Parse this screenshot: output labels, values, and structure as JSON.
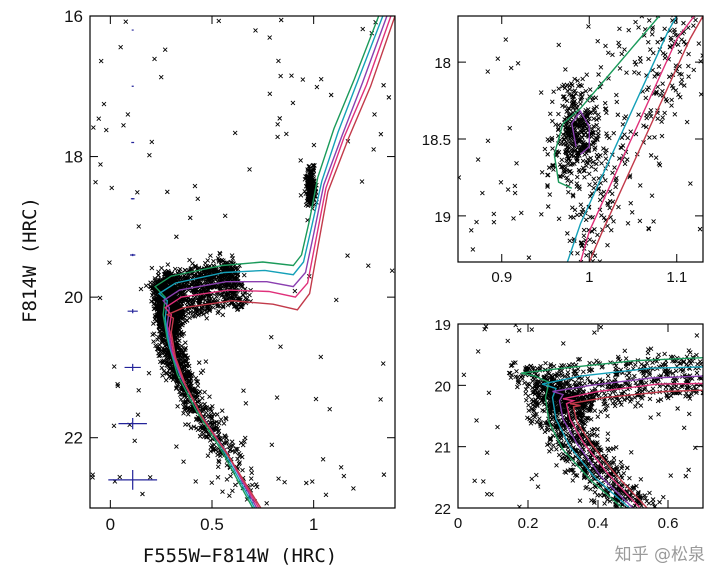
{
  "colors": {
    "stars": "#000000",
    "error_bars": "#23239a",
    "isochrones": [
      "#1a9a5a",
      "#14a0b8",
      "#8a3fb0",
      "#e0307a",
      "#c23a4a"
    ]
  },
  "watermark": "知乎 @松泉",
  "chart_data": [
    {
      "id": "main-cmd",
      "type": "scatter",
      "xlabel": "F555W−F814W (HRC)",
      "ylabel": "F814W (HRC)",
      "xlim": [
        -0.1,
        1.4
      ],
      "ylim": [
        23,
        16
      ],
      "y_inverted": true,
      "xticks": [
        {
          "v": 0,
          "label": "0"
        },
        {
          "v": 0.5,
          "label": "0.5"
        },
        {
          "v": 1,
          "label": "1"
        }
      ],
      "yticks": [
        {
          "v": 16,
          "label": "16"
        },
        {
          "v": 18,
          "label": "18"
        },
        {
          "v": 20,
          "label": "20"
        },
        {
          "v": 22,
          "label": "22"
        }
      ],
      "error_bars": [
        {
          "x": 0.11,
          "y": 16.2,
          "xerr": 0.004,
          "yerr": 0.005
        },
        {
          "x": 0.11,
          "y": 17.0,
          "xerr": 0.005,
          "yerr": 0.006
        },
        {
          "x": 0.11,
          "y": 17.8,
          "xerr": 0.007,
          "yerr": 0.008
        },
        {
          "x": 0.11,
          "y": 18.6,
          "xerr": 0.009,
          "yerr": 0.011
        },
        {
          "x": 0.11,
          "y": 19.4,
          "xerr": 0.013,
          "yerr": 0.016
        },
        {
          "x": 0.11,
          "y": 20.2,
          "xerr": 0.025,
          "yerr": 0.03
        },
        {
          "x": 0.11,
          "y": 21.0,
          "xerr": 0.04,
          "yerr": 0.05
        },
        {
          "x": 0.11,
          "y": 21.8,
          "xerr": 0.07,
          "yerr": 0.08
        },
        {
          "x": 0.11,
          "y": 22.6,
          "xerr": 0.12,
          "yerr": 0.14
        }
      ],
      "isochrones": [
        {
          "color_index": 0,
          "points": [
            [
              0.7,
              23.0
            ],
            [
              0.55,
              22.2
            ],
            [
              0.42,
              21.6
            ],
            [
              0.33,
              21.1
            ],
            [
              0.28,
              20.6
            ],
            [
              0.26,
              20.25
            ],
            [
              0.27,
              20.0
            ],
            [
              0.22,
              19.85
            ],
            [
              0.3,
              19.7
            ],
            [
              0.55,
              19.55
            ],
            [
              0.75,
              19.5
            ],
            [
              0.9,
              19.55
            ],
            [
              0.94,
              19.4
            ],
            [
              0.98,
              18.9
            ],
            [
              1.02,
              18.3
            ],
            [
              1.1,
              17.6
            ],
            [
              1.2,
              16.9
            ],
            [
              1.32,
              16.0
            ]
          ]
        },
        {
          "color_index": 1,
          "points": [
            [
              0.71,
              23.0
            ],
            [
              0.56,
              22.2
            ],
            [
              0.43,
              21.6
            ],
            [
              0.34,
              21.1
            ],
            [
              0.29,
              20.7
            ],
            [
              0.27,
              20.3
            ],
            [
              0.28,
              20.05
            ],
            [
              0.24,
              19.95
            ],
            [
              0.32,
              19.8
            ],
            [
              0.56,
              19.65
            ],
            [
              0.76,
              19.62
            ],
            [
              0.9,
              19.68
            ],
            [
              0.95,
              19.5
            ],
            [
              0.99,
              19.0
            ],
            [
              1.04,
              18.35
            ],
            [
              1.12,
              17.65
            ],
            [
              1.22,
              16.9
            ],
            [
              1.34,
              16.0
            ]
          ]
        },
        {
          "color_index": 2,
          "points": [
            [
              0.72,
              23.0
            ],
            [
              0.57,
              22.2
            ],
            [
              0.44,
              21.65
            ],
            [
              0.35,
              21.15
            ],
            [
              0.3,
              20.75
            ],
            [
              0.28,
              20.4
            ],
            [
              0.29,
              20.15
            ],
            [
              0.26,
              20.05
            ],
            [
              0.34,
              19.9
            ],
            [
              0.57,
              19.78
            ],
            [
              0.77,
              19.78
            ],
            [
              0.9,
              19.85
            ],
            [
              0.96,
              19.65
            ],
            [
              1.0,
              19.1
            ],
            [
              1.05,
              18.4
            ],
            [
              1.14,
              17.7
            ],
            [
              1.24,
              16.95
            ],
            [
              1.36,
              16.0
            ]
          ]
        },
        {
          "color_index": 3,
          "points": [
            [
              0.73,
              23.0
            ],
            [
              0.58,
              22.25
            ],
            [
              0.45,
              21.7
            ],
            [
              0.36,
              21.2
            ],
            [
              0.31,
              20.8
            ],
            [
              0.29,
              20.45
            ],
            [
              0.3,
              20.25
            ],
            [
              0.27,
              20.15
            ],
            [
              0.35,
              20.0
            ],
            [
              0.58,
              19.9
            ],
            [
              0.78,
              19.92
            ],
            [
              0.91,
              20.0
            ],
            [
              0.97,
              19.8
            ],
            [
              1.01,
              19.2
            ],
            [
              1.06,
              18.45
            ],
            [
              1.15,
              17.72
            ],
            [
              1.26,
              16.98
            ],
            [
              1.38,
              16.0
            ]
          ]
        },
        {
          "color_index": 4,
          "points": [
            [
              0.74,
              23.0
            ],
            [
              0.59,
              22.3
            ],
            [
              0.46,
              21.75
            ],
            [
              0.37,
              21.25
            ],
            [
              0.32,
              20.85
            ],
            [
              0.3,
              20.5
            ],
            [
              0.31,
              20.3
            ],
            [
              0.28,
              20.25
            ],
            [
              0.36,
              20.15
            ],
            [
              0.6,
              20.05
            ],
            [
              0.8,
              20.1
            ],
            [
              0.92,
              20.18
            ],
            [
              0.98,
              19.95
            ],
            [
              1.02,
              19.3
            ],
            [
              1.07,
              18.5
            ],
            [
              1.17,
              17.75
            ],
            [
              1.28,
              17.0
            ],
            [
              1.4,
              16.0
            ]
          ]
        }
      ]
    },
    {
      "id": "rgb-zoom",
      "type": "scatter",
      "xlabel": "",
      "ylabel": "",
      "xlim": [
        0.85,
        1.13
      ],
      "ylim": [
        19.3,
        17.7
      ],
      "y_inverted": true,
      "xticks": [
        {
          "v": 0.9,
          "label": "0.9"
        },
        {
          "v": 1.0,
          "label": "1"
        },
        {
          "v": 1.1,
          "label": "1.1"
        }
      ],
      "yticks": [
        {
          "v": 18.0,
          "label": "18"
        },
        {
          "v": 18.5,
          "label": "18.5"
        },
        {
          "v": 19.0,
          "label": "19"
        }
      ],
      "isochrones": [
        {
          "color_index": 0,
          "points": [
            [
              0.98,
              18.82
            ],
            [
              0.965,
              18.78
            ],
            [
              0.96,
              18.6
            ],
            [
              0.97,
              18.4
            ],
            [
              0.99,
              18.3
            ],
            [
              1.02,
              18.1
            ],
            [
              1.05,
              17.9
            ],
            [
              1.08,
              17.7
            ]
          ]
        },
        {
          "color_index": 1,
          "points": [
            [
              0.975,
              19.3
            ],
            [
              0.99,
              19.05
            ],
            [
              1.01,
              18.8
            ],
            [
              1.03,
              18.55
            ],
            [
              1.05,
              18.3
            ],
            [
              1.07,
              18.05
            ],
            [
              1.09,
              17.8
            ],
            [
              1.1,
              17.7
            ]
          ]
        },
        {
          "color_index": 2,
          "points": [
            [
              0.985,
              18.55
            ],
            [
              0.98,
              18.4
            ],
            [
              0.99,
              18.32
            ],
            [
              1.0,
              18.42
            ],
            [
              1.0,
              18.55
            ],
            [
              0.99,
              18.6
            ]
          ]
        },
        {
          "color_index": 3,
          "points": [
            [
              0.99,
              19.3
            ],
            [
              1.0,
              19.1
            ],
            [
              1.02,
              18.85
            ],
            [
              1.04,
              18.6
            ],
            [
              1.06,
              18.35
            ],
            [
              1.08,
              18.1
            ],
            [
              1.1,
              17.85
            ],
            [
              1.12,
              17.7
            ]
          ]
        },
        {
          "color_index": 4,
          "points": [
            [
              1.0,
              19.3
            ],
            [
              1.015,
              19.1
            ],
            [
              1.035,
              18.85
            ],
            [
              1.055,
              18.6
            ],
            [
              1.075,
              18.35
            ],
            [
              1.095,
              18.1
            ],
            [
              1.115,
              17.85
            ],
            [
              1.13,
              17.7
            ]
          ]
        }
      ]
    },
    {
      "id": "turnoff-zoom",
      "type": "scatter",
      "xlabel": "",
      "ylabel": "",
      "xlim": [
        0,
        0.7
      ],
      "ylim": [
        22,
        19
      ],
      "y_inverted": true,
      "xticks": [
        {
          "v": 0,
          "label": "0"
        },
        {
          "v": 0.2,
          "label": "0.2"
        },
        {
          "v": 0.4,
          "label": "0.4"
        },
        {
          "v": 0.6,
          "label": "0.6"
        }
      ],
      "yticks": [
        {
          "v": 19,
          "label": "19"
        },
        {
          "v": 20,
          "label": "20"
        },
        {
          "v": 21,
          "label": "21"
        },
        {
          "v": 22,
          "label": "22"
        }
      ],
      "isochrones": [
        {
          "color_index": 0,
          "points": [
            [
              0.47,
              22.0
            ],
            [
              0.38,
              21.55
            ],
            [
              0.3,
              21.05
            ],
            [
              0.26,
              20.6
            ],
            [
              0.25,
              20.2
            ],
            [
              0.26,
              19.95
            ],
            [
              0.22,
              19.85
            ],
            [
              0.18,
              19.8
            ],
            [
              0.3,
              19.72
            ],
            [
              0.5,
              19.6
            ],
            [
              0.7,
              19.55
            ]
          ]
        },
        {
          "color_index": 1,
          "points": [
            [
              0.49,
              22.0
            ],
            [
              0.39,
              21.5
            ],
            [
              0.32,
              21.0
            ],
            [
              0.28,
              20.55
            ],
            [
              0.27,
              20.2
            ],
            [
              0.28,
              20.05
            ],
            [
              0.24,
              19.98
            ],
            [
              0.35,
              19.85
            ],
            [
              0.55,
              19.72
            ],
            [
              0.7,
              19.7
            ]
          ]
        },
        {
          "color_index": 2,
          "points": [
            [
              0.5,
              22.0
            ],
            [
              0.41,
              21.5
            ],
            [
              0.34,
              20.95
            ],
            [
              0.3,
              20.55
            ],
            [
              0.29,
              20.25
            ],
            [
              0.3,
              20.15
            ],
            [
              0.27,
              20.1
            ],
            [
              0.38,
              20.0
            ],
            [
              0.55,
              19.88
            ],
            [
              0.7,
              19.85
            ]
          ]
        },
        {
          "color_index": 3,
          "points": [
            [
              0.52,
              22.0
            ],
            [
              0.43,
              21.45
            ],
            [
              0.36,
              20.95
            ],
            [
              0.32,
              20.55
            ],
            [
              0.31,
              20.3
            ],
            [
              0.33,
              20.25
            ],
            [
              0.3,
              20.22
            ],
            [
              0.4,
              20.1
            ],
            [
              0.57,
              19.98
            ],
            [
              0.7,
              19.97
            ]
          ]
        },
        {
          "color_index": 4,
          "points": [
            [
              0.54,
              22.0
            ],
            [
              0.45,
              21.45
            ],
            [
              0.38,
              20.95
            ],
            [
              0.34,
              20.6
            ],
            [
              0.33,
              20.35
            ],
            [
              0.35,
              20.33
            ],
            [
              0.32,
              20.3
            ],
            [
              0.42,
              20.2
            ],
            [
              0.59,
              20.1
            ],
            [
              0.7,
              20.08
            ]
          ]
        }
      ]
    }
  ]
}
